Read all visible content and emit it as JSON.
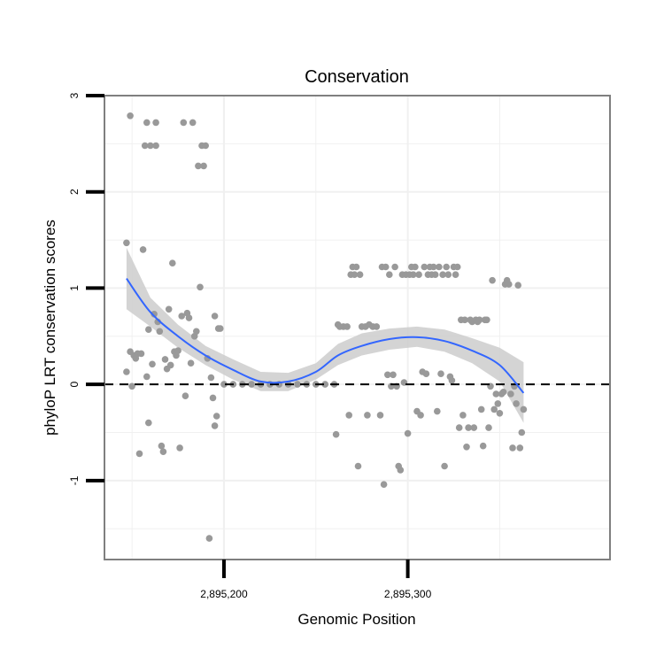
{
  "chart_data": {
    "type": "scatter",
    "title": "Conservation",
    "xlabel": "Genomic Position",
    "ylabel": "phyloP LRT conservation scores",
    "xlim": [
      2895135,
      2895410
    ],
    "ylim": [
      -1.82,
      3.0
    ],
    "x_ticks": [
      2895200,
      2895300
    ],
    "x_tick_labels": [
      "2,895,200",
      "2,895,300"
    ],
    "y_ticks": [
      -1,
      0,
      1,
      2,
      3
    ],
    "y_tick_labels": [
      "-1",
      "0",
      "1",
      "2",
      "3"
    ],
    "grid": true,
    "reference_line": {
      "y": 0,
      "style": "dashed"
    },
    "colors": {
      "points": "#999999",
      "smooth": "#3366ff",
      "ribbon": "#cccccc",
      "panel_border": "#7f7f7f",
      "grid": "#f0f0f0"
    },
    "points": [
      [
        2895147,
        1.47
      ],
      [
        2895147,
        0.13
      ],
      [
        2895149,
        2.79
      ],
      [
        2895149,
        0.34
      ],
      [
        2895150,
        -0.02
      ],
      [
        2895151,
        0.3
      ],
      [
        2895152,
        0.27
      ],
      [
        2895153,
        0.32
      ],
      [
        2895154,
        -0.72
      ],
      [
        2895155,
        0.32
      ],
      [
        2895156,
        1.4
      ],
      [
        2895157,
        2.48
      ],
      [
        2895158,
        2.72
      ],
      [
        2895158,
        0.08
      ],
      [
        2895159,
        -0.4
      ],
      [
        2895159,
        0.57
      ],
      [
        2895160,
        2.48
      ],
      [
        2895161,
        0.21
      ],
      [
        2895162,
        0.73
      ],
      [
        2895163,
        2.48
      ],
      [
        2895163,
        2.72
      ],
      [
        2895164,
        0.65
      ],
      [
        2895165,
        0.55
      ],
      [
        2895166,
        -0.64
      ],
      [
        2895167,
        -0.7
      ],
      [
        2895168,
        0.26
      ],
      [
        2895169,
        0.16
      ],
      [
        2895170,
        0.78
      ],
      [
        2895171,
        0.2
      ],
      [
        2895172,
        1.26
      ],
      [
        2895173,
        0.34
      ],
      [
        2895174,
        0.3
      ],
      [
        2895175,
        0.35
      ],
      [
        2895176,
        -0.66
      ],
      [
        2895177,
        0.71
      ],
      [
        2895178,
        2.72
      ],
      [
        2895179,
        -0.12
      ],
      [
        2895180,
        0.74
      ],
      [
        2895181,
        0.69
      ],
      [
        2895182,
        0.22
      ],
      [
        2895183,
        2.72
      ],
      [
        2895184,
        0.5
      ],
      [
        2895185,
        0.55
      ],
      [
        2895186,
        2.27
      ],
      [
        2895187,
        1.01
      ],
      [
        2895188,
        2.48
      ],
      [
        2895189,
        2.27
      ],
      [
        2895190,
        2.48
      ],
      [
        2895191,
        0.27
      ],
      [
        2895192,
        -1.6
      ],
      [
        2895193,
        0.07
      ],
      [
        2895194,
        -0.14
      ],
      [
        2895195,
        -0.43
      ],
      [
        2895195,
        0.71
      ],
      [
        2895196,
        -0.33
      ],
      [
        2895197,
        0.58
      ],
      [
        2895198,
        0.58
      ],
      [
        2895200,
        0
      ],
      [
        2895205,
        0
      ],
      [
        2895210,
        0
      ],
      [
        2895215,
        0
      ],
      [
        2895220,
        0
      ],
      [
        2895225,
        0
      ],
      [
        2895230,
        0
      ],
      [
        2895235,
        0
      ],
      [
        2895240,
        0
      ],
      [
        2895245,
        0
      ],
      [
        2895250,
        0
      ],
      [
        2895255,
        0
      ],
      [
        2895260,
        0
      ],
      [
        2895261,
        -0.52
      ],
      [
        2895262,
        0.62
      ],
      [
        2895263,
        0.6
      ],
      [
        2895265,
        0.6
      ],
      [
        2895267,
        0.6
      ],
      [
        2895268,
        -0.32
      ],
      [
        2895269,
        1.14
      ],
      [
        2895270,
        1.22
      ],
      [
        2895271,
        1.14
      ],
      [
        2895272,
        1.22
      ],
      [
        2895273,
        -0.85
      ],
      [
        2895274,
        1.14
      ],
      [
        2895275,
        0.6
      ],
      [
        2895277,
        0.6
      ],
      [
        2895278,
        -0.32
      ],
      [
        2895279,
        0.62
      ],
      [
        2895281,
        0.6
      ],
      [
        2895283,
        0.6
      ],
      [
        2895285,
        -0.32
      ],
      [
        2895286,
        1.22
      ],
      [
        2895287,
        -1.04
      ],
      [
        2895288,
        1.22
      ],
      [
        2895289,
        0.1
      ],
      [
        2895290,
        1.14
      ],
      [
        2895291,
        -0.02
      ],
      [
        2895292,
        0.1
      ],
      [
        2895293,
        1.22
      ],
      [
        2895294,
        -0.02
      ],
      [
        2895295,
        -0.85
      ],
      [
        2895296,
        -0.89
      ],
      [
        2895297,
        1.14
      ],
      [
        2895298,
        0.02
      ],
      [
        2895299,
        1.14
      ],
      [
        2895300,
        -0.51
      ],
      [
        2895301,
        1.14
      ],
      [
        2895302,
        1.22
      ],
      [
        2895303,
        1.14
      ],
      [
        2895304,
        1.22
      ],
      [
        2895305,
        -0.28
      ],
      [
        2895306,
        1.14
      ],
      [
        2895307,
        -0.32
      ],
      [
        2895308,
        0.13
      ],
      [
        2895309,
        1.22
      ],
      [
        2895310,
        0.11
      ],
      [
        2895311,
        1.14
      ],
      [
        2895312,
        1.22
      ],
      [
        2895313,
        1.14
      ],
      [
        2895314,
        1.22
      ],
      [
        2895315,
        1.14
      ],
      [
        2895316,
        -0.28
      ],
      [
        2895317,
        1.22
      ],
      [
        2895318,
        0.11
      ],
      [
        2895319,
        1.14
      ],
      [
        2895320,
        -0.85
      ],
      [
        2895321,
        1.22
      ],
      [
        2895322,
        1.14
      ],
      [
        2895323,
        0.08
      ],
      [
        2895324,
        0.04
      ],
      [
        2895325,
        1.22
      ],
      [
        2895326,
        1.14
      ],
      [
        2895327,
        1.22
      ],
      [
        2895328,
        -0.45
      ],
      [
        2895329,
        0.67
      ],
      [
        2895330,
        -0.32
      ],
      [
        2895331,
        0.67
      ],
      [
        2895332,
        -0.65
      ],
      [
        2895333,
        -0.45
      ],
      [
        2895334,
        0.67
      ],
      [
        2895335,
        0.65
      ],
      [
        2895336,
        -0.45
      ],
      [
        2895337,
        0.67
      ],
      [
        2895338,
        0.65
      ],
      [
        2895339,
        0.67
      ],
      [
        2895340,
        -0.26
      ],
      [
        2895341,
        -0.64
      ],
      [
        2895342,
        0.67
      ],
      [
        2895343,
        0.67
      ],
      [
        2895344,
        -0.45
      ],
      [
        2895345,
        -0.02
      ],
      [
        2895346,
        1.08
      ],
      [
        2895347,
        -0.26
      ],
      [
        2895348,
        -0.1
      ],
      [
        2895349,
        -0.2
      ],
      [
        2895350,
        -0.3
      ],
      [
        2895351,
        -0.1
      ],
      [
        2895352,
        -0.08
      ],
      [
        2895353,
        1.04
      ],
      [
        2895354,
        1.08
      ],
      [
        2895355,
        1.04
      ],
      [
        2895356,
        -0.1
      ],
      [
        2895357,
        -0.66
      ],
      [
        2895358,
        -0.02
      ],
      [
        2895359,
        -0.2
      ],
      [
        2895360,
        1.03
      ],
      [
        2895361,
        -0.66
      ],
      [
        2895362,
        -0.5
      ],
      [
        2895363,
        -0.26
      ]
    ],
    "smooth_line": {
      "x": [
        2895147,
        2895160,
        2895175,
        2895190,
        2895205,
        2895220,
        2895235,
        2895250,
        2895262,
        2895275,
        2895290,
        2895305,
        2895320,
        2895335,
        2895350,
        2895363
      ],
      "y": [
        1.1,
        0.75,
        0.5,
        0.3,
        0.15,
        0.03,
        0.03,
        0.13,
        0.3,
        0.4,
        0.47,
        0.49,
        0.45,
        0.35,
        0.2,
        -0.09
      ]
    },
    "confidence_band": {
      "x": [
        2895147,
        2895160,
        2895175,
        2895190,
        2895205,
        2895220,
        2895235,
        2895250,
        2895262,
        2895275,
        2895290,
        2895305,
        2895320,
        2895335,
        2895350,
        2895363
      ],
      "upper": [
        1.42,
        0.9,
        0.62,
        0.4,
        0.26,
        0.13,
        0.12,
        0.22,
        0.42,
        0.53,
        0.58,
        0.6,
        0.57,
        0.48,
        0.38,
        0.23
      ],
      "lower": [
        0.78,
        0.6,
        0.38,
        0.2,
        0.05,
        -0.07,
        -0.07,
        0.05,
        0.2,
        0.3,
        0.36,
        0.39,
        0.34,
        0.22,
        0.03,
        -0.4
      ]
    }
  }
}
